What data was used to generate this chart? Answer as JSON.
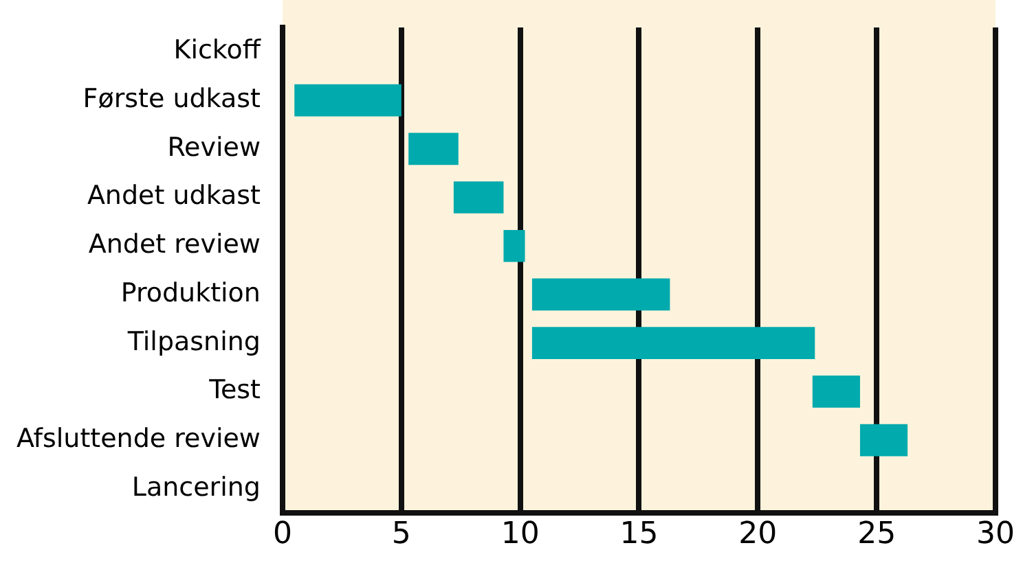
{
  "chart_data": {
    "type": "bar",
    "orientation": "horizontal",
    "categories": [
      "Kickoff",
      "Første udkast",
      "Review",
      "Andet udkast",
      "Andet review",
      "Produktion",
      "Tilpasning",
      "Test",
      "Afsluttende review",
      "Lancering"
    ],
    "base": [
      null,
      0.5,
      5.3,
      7.2,
      9.3,
      10.5,
      10.5,
      22.3,
      24.3,
      null
    ],
    "values": [
      null,
      4.5,
      2.1,
      2.1,
      0.9,
      5.8,
      11.9,
      2,
      2,
      null
    ],
    "color": "#00aaad",
    "xlim": [
      0,
      30
    ],
    "xticks": [
      0,
      5,
      10,
      15,
      20,
      25,
      30
    ],
    "grid": "x",
    "legend": false
  }
}
